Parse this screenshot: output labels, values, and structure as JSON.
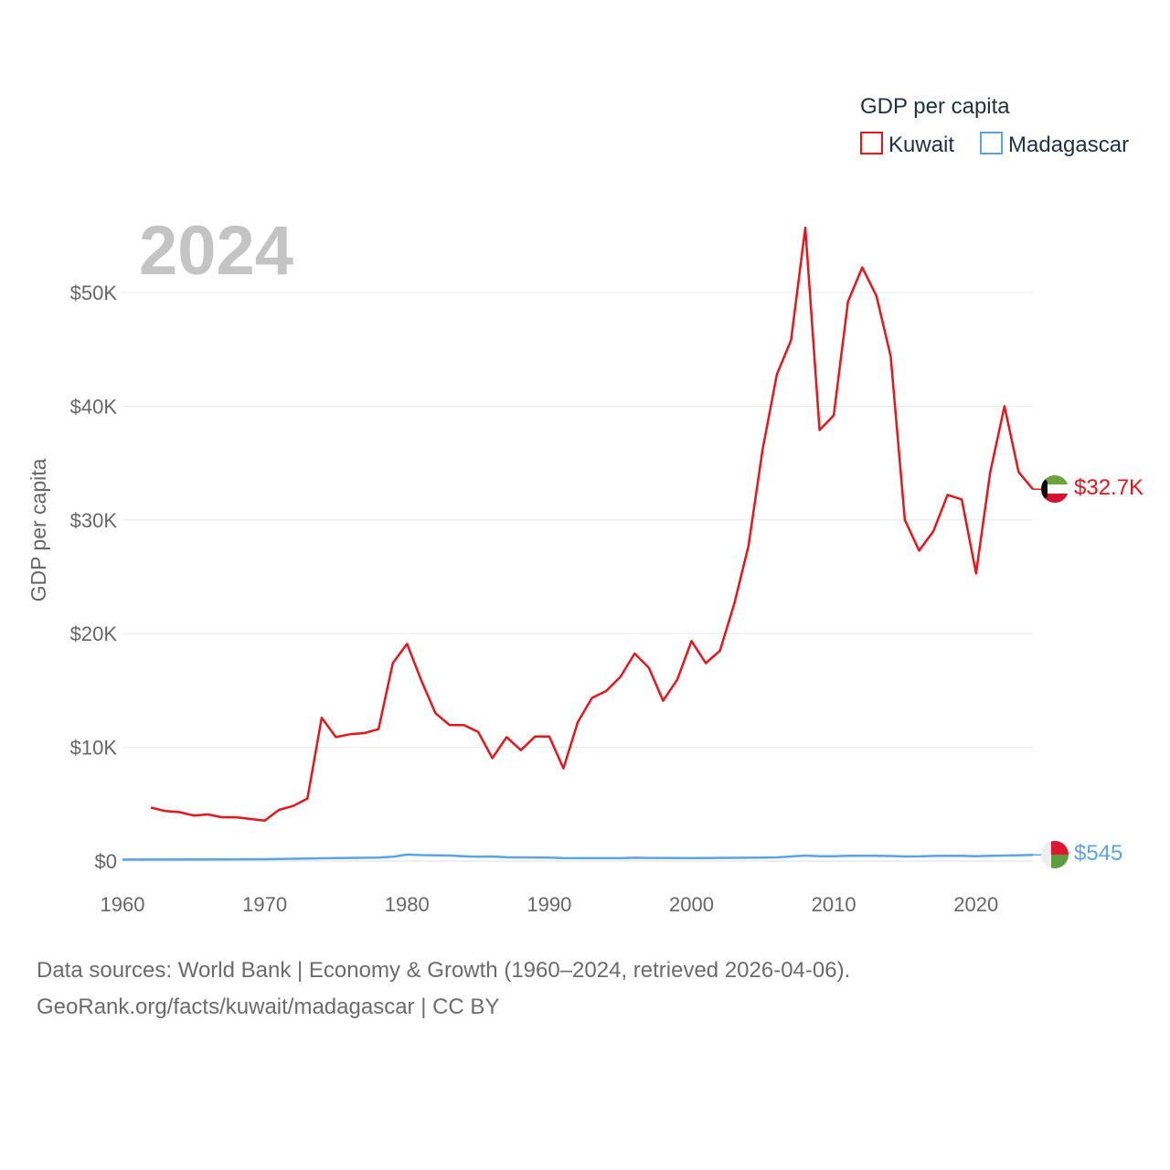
{
  "chart_data": {
    "type": "line",
    "title": "GDP per capita",
    "year_label": "2024",
    "ylabel": "GDP per capita",
    "xlabel": "",
    "xlim": [
      1960,
      2024
    ],
    "ylim": [
      0,
      55000
    ],
    "x_ticks": [
      1960,
      1970,
      1980,
      1990,
      2000,
      2010,
      2020
    ],
    "x_tick_labels": [
      "1960",
      "1970",
      "1980",
      "1990",
      "2000",
      "2010",
      "2020"
    ],
    "y_ticks": [
      0,
      10000,
      20000,
      30000,
      40000,
      50000
    ],
    "y_tick_labels": [
      "$0",
      "$10K",
      "$20K",
      "$30K",
      "$40K",
      "$50K"
    ],
    "grid": true,
    "legend_position": "top-right",
    "series": [
      {
        "name": "Kuwait",
        "color": "#e8151b",
        "end_label": "$32.7K",
        "flag": "kuwait-flag",
        "x": [
          1962,
          1963,
          1964,
          1965,
          1966,
          1967,
          1968,
          1969,
          1970,
          1971,
          1972,
          1973,
          1974,
          1975,
          1976,
          1977,
          1978,
          1979,
          1980,
          1981,
          1982,
          1983,
          1984,
          1985,
          1986,
          1987,
          1988,
          1989,
          1990,
          1991,
          1992,
          1993,
          1994,
          1995,
          1996,
          1997,
          1998,
          1999,
          2000,
          2001,
          2002,
          2003,
          2004,
          2005,
          2006,
          2007,
          2008,
          2009,
          2010,
          2011,
          2012,
          2013,
          2014,
          2015,
          2016,
          2017,
          2018,
          2019,
          2020,
          2021,
          2022,
          2023,
          2024
        ],
        "values": [
          4700,
          4400,
          4300,
          4000,
          4100,
          3850,
          3850,
          3700,
          3550,
          4500,
          4850,
          5500,
          12600,
          10900,
          11150,
          11250,
          11600,
          17400,
          19100,
          15900,
          13000,
          11950,
          11950,
          11350,
          9050,
          10900,
          9750,
          10950,
          10950,
          8150,
          12200,
          14350,
          14950,
          16200,
          18250,
          17000,
          14100,
          15950,
          19350,
          17400,
          18500,
          22600,
          27700,
          36200,
          42800,
          45800,
          55700,
          37900,
          39200,
          49200,
          52200,
          49700,
          44400,
          30000,
          27300,
          29000,
          32200,
          31800,
          25300,
          34200,
          40000,
          34200,
          32700
        ]
      },
      {
        "name": "Madagascar",
        "color": "#5ba3e6",
        "end_label": "$545",
        "flag": "madagascar-flag",
        "x": [
          1960,
          1965,
          1970,
          1975,
          1978,
          1979,
          1980,
          1981,
          1983,
          1984,
          1985,
          1986,
          1987,
          1990,
          1991,
          1995,
          1996,
          1997,
          2000,
          2005,
          2006,
          2008,
          2009,
          2010,
          2011,
          2013,
          2014,
          2015,
          2016,
          2017,
          2019,
          2020,
          2021,
          2023,
          2024
        ],
        "values": [
          130,
          135,
          160,
          260,
          300,
          380,
          570,
          520,
          480,
          420,
          380,
          400,
          330,
          300,
          260,
          250,
          290,
          270,
          260,
          300,
          320,
          480,
          420,
          430,
          460,
          460,
          440,
          400,
          410,
          450,
          460,
          420,
          460,
          510,
          545
        ]
      }
    ]
  },
  "footer": {
    "line1": "Data sources: World Bank | Economy & Growth (1960–2024, retrieved 2026-04-06).",
    "line2": "GeoRank.org/facts/kuwait/madagascar | CC BY"
  }
}
